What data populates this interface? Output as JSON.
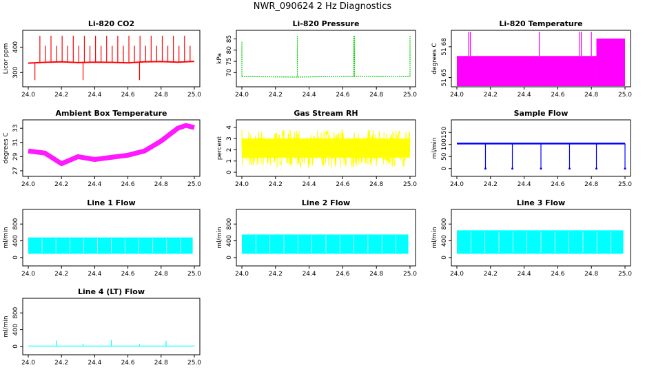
{
  "title": "NWR_090624  2 Hz Diagnostics",
  "chart_data": [
    {
      "type": "line",
      "title": "Li-820 CO2",
      "ylabel": "Licor ppm",
      "color": "#ff0000",
      "pattern": "spikes_up",
      "xlim": [
        24.0,
        25.0
      ],
      "ylim": [
        260,
        450
      ],
      "yticks": [
        300,
        400
      ],
      "xticks": [
        "24.0",
        "24.2",
        "24.4",
        "24.6",
        "24.8",
        "25.0"
      ],
      "series": [
        {
          "x": [
            24.0,
            24.1,
            24.2,
            24.3,
            24.4,
            24.5,
            24.6,
            24.7,
            24.8,
            24.9,
            25.0
          ],
          "y": [
            337,
            340,
            342,
            339,
            341,
            340,
            338,
            342,
            343,
            341,
            344
          ]
        }
      ]
    },
    {
      "type": "line",
      "title": "Li-820 Pressure",
      "ylabel": "kPa",
      "color": "#00cc00",
      "pattern": "pressure",
      "xlim": [
        24.0,
        25.0
      ],
      "ylim": [
        65.5,
        87
      ],
      "yticks": [
        70,
        75,
        80,
        85
      ],
      "xticks": [
        "24.0",
        "24.2",
        "24.4",
        "24.6",
        "24.8",
        "25.0"
      ],
      "series": [
        {
          "x": [
            24.0,
            24.33,
            24.67,
            25.0
          ],
          "y": [
            68.2,
            68.0,
            68.4,
            68.3
          ]
        }
      ]
    },
    {
      "type": "area",
      "title": "Li-820 Temperature",
      "ylabel": "degrees C",
      "color": "#ff00ff",
      "pattern": "temp_block",
      "xlim": [
        24.0,
        25.0
      ],
      "ylim": [
        51.645,
        51.692
      ],
      "yticks": [
        51.65,
        51.68
      ],
      "ytick_labels": [
        "51 65",
        "51 68"
      ],
      "xticks": [
        "24.0",
        "24.2",
        "24.4",
        "24.6",
        "24.8",
        "25.0"
      ],
      "series": [
        {
          "x": [
            24.0,
            24.83,
            24.84,
            25.0
          ],
          "y": [
            51.671,
            51.671,
            51.688,
            51.688
          ]
        }
      ]
    },
    {
      "type": "line",
      "title": "Ambient Box Temperature",
      "ylabel": "degrees C",
      "color": "#ff00ff",
      "pattern": "ambient",
      "xlim": [
        24.0,
        25.0
      ],
      "ylim": [
        26.8,
        33.6
      ],
      "yticks": [
        27,
        29,
        31,
        33
      ],
      "xticks": [
        "24.0",
        "24.2",
        "24.4",
        "24.6",
        "24.8",
        "25.0"
      ],
      "series": [
        {
          "x": [
            24.0,
            24.1,
            24.2,
            24.3,
            24.4,
            24.5,
            24.6,
            24.7,
            24.8,
            24.9,
            24.95,
            25.0
          ],
          "y": [
            29.8,
            29.5,
            28.0,
            29.0,
            28.6,
            28.9,
            29.2,
            29.8,
            31.2,
            33.0,
            33.4,
            33.1
          ]
        }
      ]
    },
    {
      "type": "line",
      "title": "Gas Stream RH",
      "ylabel": "percent",
      "color": "#ffff00",
      "pattern": "noise",
      "xlim": [
        24.0,
        25.0
      ],
      "ylim": [
        0,
        4.3
      ],
      "yticks": [
        0,
        1,
        2,
        3,
        4
      ],
      "xticks": [
        "24.0",
        "24.2",
        "24.4",
        "24.6",
        "24.8",
        "25.0"
      ],
      "band": [
        0.4,
        3.8
      ],
      "series": [
        {
          "x": [
            24.0,
            25.0
          ],
          "y": [
            2.1,
            2.1
          ]
        }
      ]
    },
    {
      "type": "line",
      "title": "Sample Flow",
      "ylabel": "ml/min",
      "color": "#0000ff",
      "pattern": "sample_flow",
      "xlim": [
        24.0,
        25.0
      ],
      "ylim": [
        -15,
        185
      ],
      "yticks": [
        0,
        50,
        100,
        150
      ],
      "xticks": [
        "24.0",
        "24.2",
        "24.4",
        "24.6",
        "24.8",
        "25.0"
      ],
      "series": [
        {
          "x": [
            24.0,
            24.17,
            24.33,
            24.5,
            24.67,
            24.83,
            25.0
          ],
          "y": [
            104,
            104,
            103,
            104,
            104,
            104,
            104
          ]
        }
      ]
    },
    {
      "type": "area",
      "title": "Line 1 Flow",
      "ylabel": "ml/min",
      "color": "#00ffff",
      "pattern": "flow_band",
      "xlim": [
        24.0,
        25.0
      ],
      "ylim": [
        -100,
        1050
      ],
      "yticks": [
        0,
        400,
        800
      ],
      "xticks": [
        "24.0",
        "24.2",
        "24.4",
        "24.6",
        "24.8",
        "25.0"
      ],
      "band": [
        90,
        480
      ],
      "series": [
        {
          "x": [
            24.0,
            24.16,
            24.33,
            24.5,
            24.66,
            24.83,
            24.99
          ],
          "y": [
            480,
            485,
            490,
            490,
            485,
            480,
            460
          ]
        }
      ]
    },
    {
      "type": "area",
      "title": "Line 2 Flow",
      "ylabel": "ml/min",
      "color": "#00ffff",
      "pattern": "flow_band",
      "xlim": [
        24.0,
        25.0
      ],
      "ylim": [
        -100,
        1050
      ],
      "yticks": [
        0,
        400,
        800
      ],
      "xticks": [
        "24.0",
        "24.2",
        "24.4",
        "24.6",
        "24.8",
        "25.0"
      ],
      "band": [
        90,
        550
      ],
      "series": [
        {
          "x": [
            24.0,
            24.2,
            24.4,
            24.6,
            24.8,
            25.0
          ],
          "y": [
            550,
            545,
            540,
            545,
            540,
            520
          ]
        }
      ]
    },
    {
      "type": "area",
      "title": "Line 3 Flow",
      "ylabel": "ml/min",
      "color": "#00ffff",
      "pattern": "flow_band",
      "xlim": [
        24.0,
        25.0
      ],
      "ylim": [
        -100,
        1050
      ],
      "yticks": [
        0,
        400,
        800
      ],
      "xticks": [
        "24.0",
        "24.2",
        "24.4",
        "24.6",
        "24.8",
        "25.0"
      ],
      "band": [
        90,
        650
      ],
      "series": [
        {
          "x": [
            24.0,
            24.2,
            24.4,
            24.6,
            24.8,
            25.0
          ],
          "y": [
            650,
            655,
            660,
            660,
            650,
            640
          ]
        }
      ]
    },
    {
      "type": "line",
      "title": "Line 4 (LT) Flow",
      "ylabel": "ml/min",
      "color": "#00ffff",
      "pattern": "baseline_spikes",
      "xlim": [
        24.0,
        25.0
      ],
      "ylim": [
        -100,
        1050
      ],
      "yticks": [
        0,
        400,
        800
      ],
      "xticks": [
        "24.0",
        "24.2",
        "24.4",
        "24.6",
        "24.8",
        "25.0"
      ],
      "series": [
        {
          "x": [
            24.0,
            24.17,
            24.33,
            24.5,
            24.67,
            24.83,
            25.0
          ],
          "y": [
            10,
            140,
            60,
            150,
            50,
            130,
            20
          ]
        }
      ]
    }
  ]
}
